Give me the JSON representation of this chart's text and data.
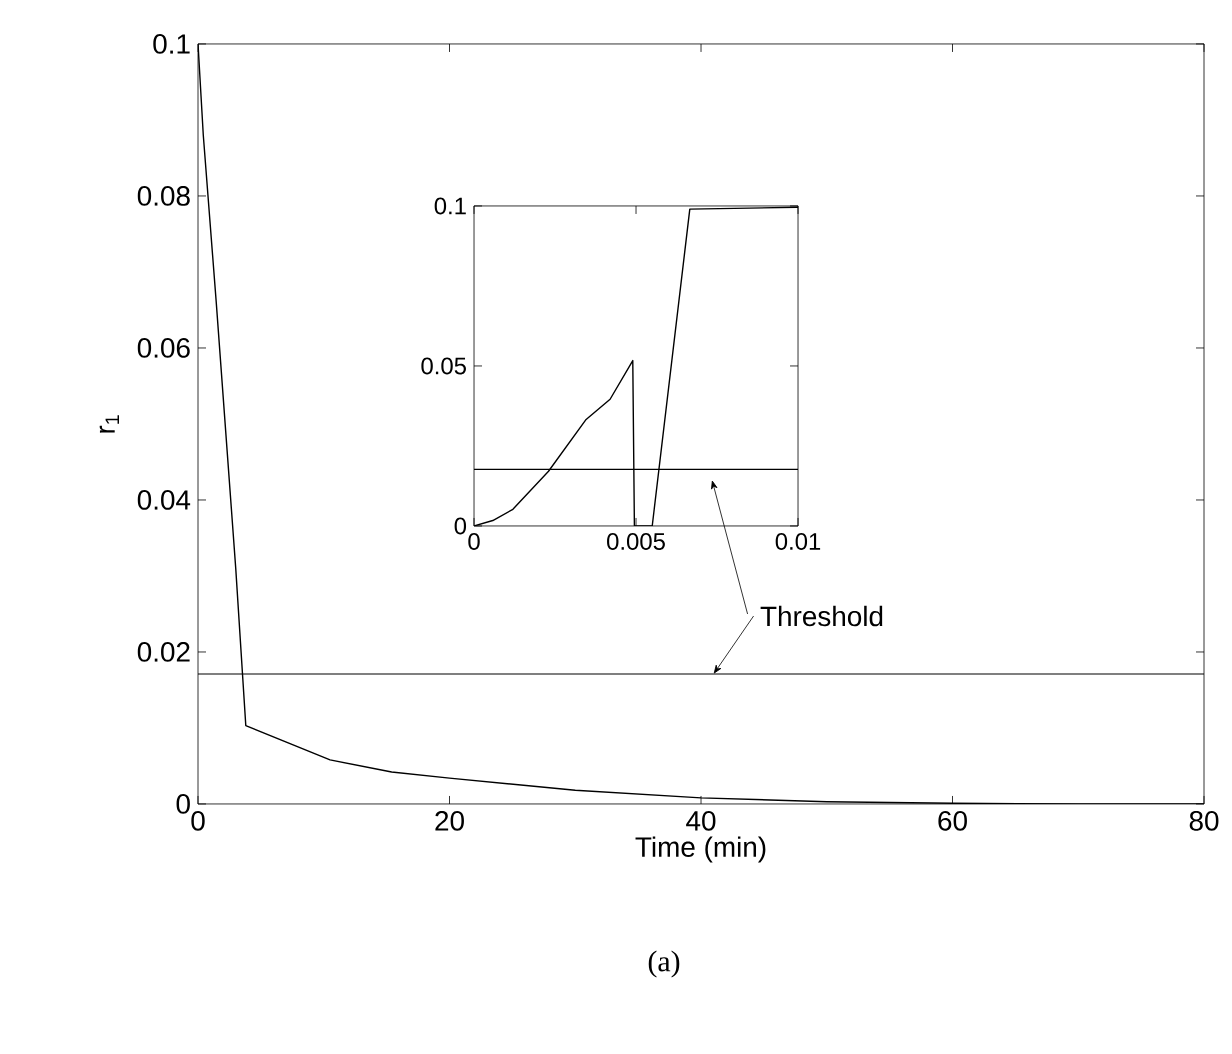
{
  "chart_data": [
    {
      "type": "line",
      "xlabel": "Time (min)",
      "ylabel": "r$_{1}$",
      "color": "#000000",
      "x": [
        0,
        0.42,
        1.45,
        3.0,
        3.8,
        10.5,
        15.4,
        20,
        30,
        40,
        50,
        60,
        70,
        80
      ],
      "values": [
        0.1,
        0.088,
        0.066,
        0.031,
        0.0103,
        0.0058,
        0.0042,
        0.0034,
        0.0018,
        0.0008,
        0.0003,
        0.0001,
        0,
        0
      ],
      "xlim": [
        0,
        80
      ],
      "ylim": [
        0,
        0.1
      ],
      "xticks": [
        0,
        20,
        40,
        60,
        80
      ],
      "yticks": [
        0,
        0.02,
        0.04,
        0.06,
        0.08,
        0.1
      ],
      "ref_lines": [
        {
          "axis": "y",
          "value": 0.0171,
          "color": "#000000"
        }
      ],
      "annotations": [
        {
          "text": "Threshold",
          "x": 41,
          "y": 0.0171
        },
        "(a)"
      ],
      "grid": false
    },
    {
      "type": "line",
      "color": "#000000",
      "x": [
        0,
        0.00058,
        0.0012,
        0.0023,
        0.00346,
        0.0042,
        0.0049,
        0.00495,
        0.0055,
        0.00666,
        0.00996,
        0.01
      ],
      "values": [
        0,
        0.0017,
        0.0052,
        0.0171,
        0.0333,
        0.0396,
        0.0517,
        0,
        0,
        0.099,
        0.0996,
        0.0996
      ],
      "xlim": [
        0,
        0.01
      ],
      "ylim": [
        0,
        0.1
      ],
      "xticks": [
        0,
        0.005,
        0.01
      ],
      "yticks": [
        0,
        0.05,
        0.1
      ],
      "ref_lines": [
        {
          "axis": "y",
          "value": 0.0177,
          "color": "#000000"
        }
      ],
      "grid": false
    }
  ]
}
